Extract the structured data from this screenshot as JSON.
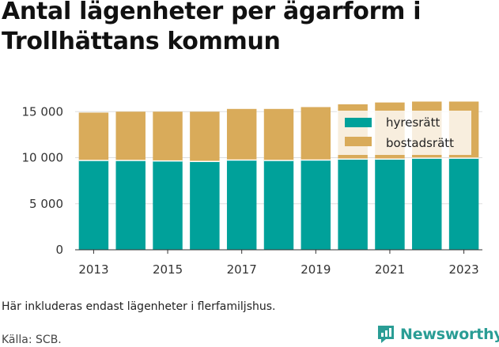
{
  "page": {
    "title": "Antal lägenheter per ägarform i Trollhättans kommun",
    "note": "Här inkluderas endast lägenheter i flerfamiljshus.",
    "source": "Källa: SCB.",
    "brand": "Newsworthy"
  },
  "colors": {
    "hyresratt": "#00a19a",
    "bostadsratt": "#d9ab5a",
    "grid": "#dddddd",
    "brand": "#2a9d95"
  },
  "chart_data": {
    "type": "bar",
    "stacked": true,
    "x": [
      2013,
      2014,
      2015,
      2016,
      2017,
      2018,
      2019,
      2020,
      2021,
      2022,
      2023
    ],
    "x_tick_labels": [
      "2013",
      "2015",
      "2017",
      "2019",
      "2021",
      "2023"
    ],
    "y_tick_labels": [
      "0",
      "5 000",
      "10 000",
      "15 000"
    ],
    "ylim": [
      0,
      17000
    ],
    "y_ticks": [
      0,
      5000,
      10000,
      15000
    ],
    "grid": true,
    "legend_position": "top-right",
    "series": [
      {
        "name": "hyresrätt",
        "values": [
          9700,
          9700,
          9650,
          9600,
          9750,
          9700,
          9750,
          9850,
          9850,
          9950,
          9950
        ]
      },
      {
        "name": "bostadsrätt",
        "values": [
          5200,
          5300,
          5350,
          5400,
          5550,
          5600,
          5750,
          5950,
          6150,
          6150,
          6150
        ]
      }
    ]
  }
}
